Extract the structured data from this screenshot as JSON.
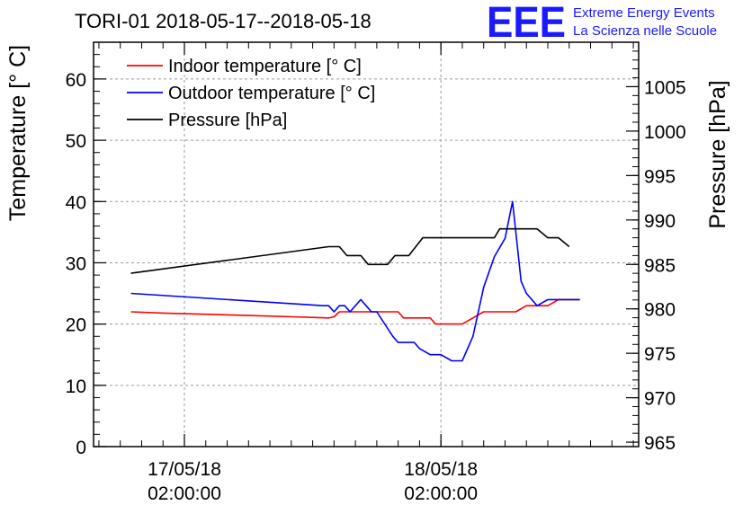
{
  "header": {
    "title": "TORI-01 2018-05-17--2018-05-18",
    "logo_text": "EEE",
    "logo_line1": "Extreme Energy Events",
    "logo_line2": "La Scienza nelle Scuole",
    "logo_color": "#1a1aff"
  },
  "chart_data": {
    "type": "line",
    "title": "TORI-01 2018-05-17--2018-05-18",
    "ylabel_left": "Temperature [° C]",
    "ylabel_right": "Pressure [hPa]",
    "x_ticks": [
      {
        "date": "17/05/18",
        "time": "02:00:00"
      },
      {
        "date": "18/05/18",
        "time": "02:00:00"
      }
    ],
    "y_left_ticks": [
      "0",
      "10",
      "20",
      "30",
      "40",
      "50",
      "60"
    ],
    "y_left_range": [
      0,
      66
    ],
    "y_right_ticks": [
      "965",
      "970",
      "975",
      "980",
      "985",
      "990",
      "995",
      "1000",
      "1005"
    ],
    "y_right_range": [
      964.5,
      1010
    ],
    "x_range_hours": [
      -6.5,
      44.5
    ],
    "grid": true,
    "legend_position": "top-left",
    "series": [
      {
        "name": "Indoor temperature [° C]",
        "axis": "left",
        "color": "#ff0000",
        "points": [
          [
            -3,
            22
          ],
          [
            0,
            21.8
          ],
          [
            4,
            21.6
          ],
          [
            8,
            21.4
          ],
          [
            12,
            21.2
          ],
          [
            15.5,
            21
          ],
          [
            16,
            21.2
          ],
          [
            16.5,
            22
          ],
          [
            21,
            22
          ],
          [
            22,
            22
          ],
          [
            22.5,
            21
          ],
          [
            25,
            21
          ],
          [
            25.5,
            20
          ],
          [
            28,
            20
          ],
          [
            29,
            21
          ],
          [
            30,
            22
          ],
          [
            33,
            22
          ],
          [
            34,
            23
          ],
          [
            36,
            23
          ],
          [
            37,
            24
          ],
          [
            39,
            24
          ]
        ]
      },
      {
        "name": "Outdoor temperature [° C]",
        "axis": "left",
        "color": "#0000ff",
        "points": [
          [
            -3,
            25
          ],
          [
            15,
            23
          ],
          [
            15.5,
            23
          ],
          [
            16,
            22
          ],
          [
            16.5,
            23
          ],
          [
            17,
            23
          ],
          [
            17.5,
            22
          ],
          [
            18,
            23
          ],
          [
            18.5,
            24
          ],
          [
            19,
            23
          ],
          [
            19.5,
            22
          ],
          [
            20,
            22
          ],
          [
            21.5,
            18
          ],
          [
            22,
            17
          ],
          [
            23.5,
            17
          ],
          [
            24,
            16
          ],
          [
            25,
            15
          ],
          [
            26,
            15
          ],
          [
            27,
            14
          ],
          [
            28,
            14
          ],
          [
            29,
            18
          ],
          [
            30,
            26
          ],
          [
            31,
            31
          ],
          [
            32,
            34
          ],
          [
            32.7,
            40
          ],
          [
            33.5,
            27
          ],
          [
            34,
            25
          ],
          [
            35,
            23
          ],
          [
            36,
            24
          ],
          [
            37,
            24
          ],
          [
            38,
            24
          ],
          [
            39,
            24
          ]
        ]
      },
      {
        "name": "Pressure [hPa]",
        "axis": "right",
        "color": "#000000",
        "points": [
          [
            -3,
            984
          ],
          [
            15.5,
            987
          ],
          [
            16.5,
            987
          ],
          [
            17.2,
            986
          ],
          [
            18.5,
            986
          ],
          [
            19.2,
            985
          ],
          [
            21,
            985
          ],
          [
            21.7,
            986
          ],
          [
            23,
            986
          ],
          [
            24.3,
            988
          ],
          [
            31,
            988
          ],
          [
            31.5,
            989
          ],
          [
            35,
            989
          ],
          [
            36,
            988
          ],
          [
            37,
            988
          ],
          [
            38,
            987
          ]
        ]
      }
    ]
  }
}
